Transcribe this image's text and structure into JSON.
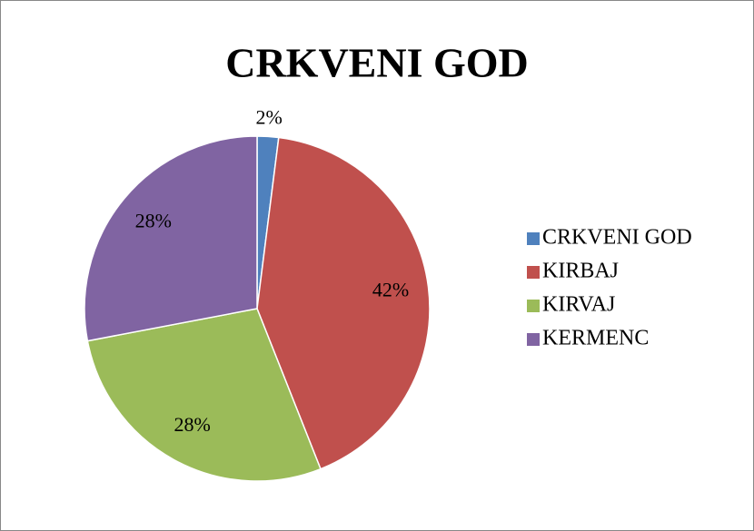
{
  "chart_data": {
    "type": "pie",
    "title": "CRKVENI GOD",
    "categories": [
      "CRKVENI GOD",
      "KIRBAJ",
      "KIRVAJ",
      "KERMENC"
    ],
    "values": [
      2,
      42,
      28,
      28
    ],
    "value_labels": [
      "2%",
      "42%",
      "28%",
      "28%"
    ],
    "colors": [
      "#4f81bd",
      "#c0504d",
      "#9bbb59",
      "#8064a2"
    ],
    "legend": "right"
  }
}
